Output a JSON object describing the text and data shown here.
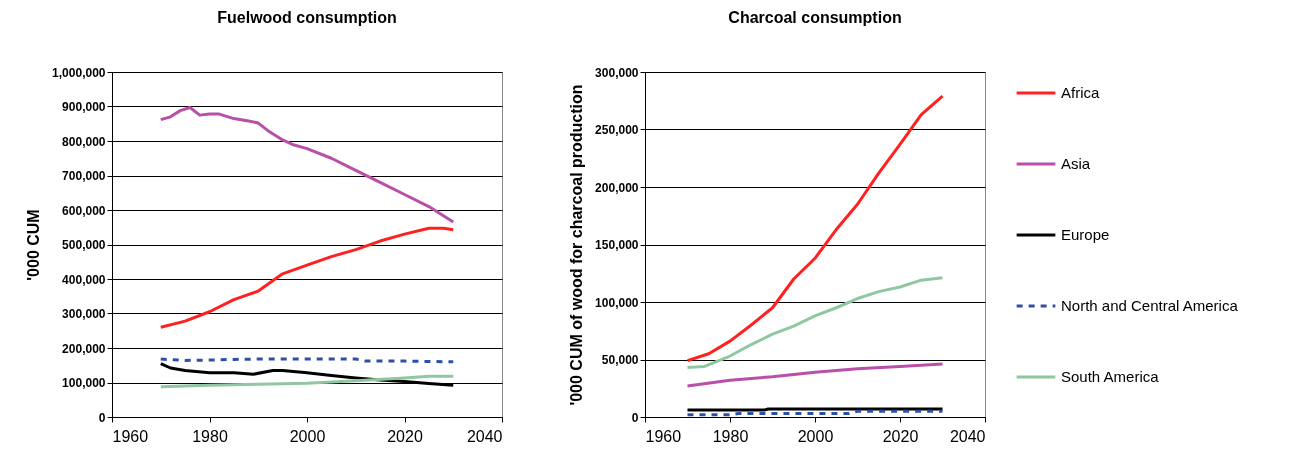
{
  "chart_data": [
    {
      "type": "line",
      "title": "Fuelwood consumption",
      "ylabel": "'000 CUM",
      "xlim": [
        1960,
        2040
      ],
      "xticks": [
        1960,
        1980,
        2000,
        2020,
        2040
      ],
      "ylim": [
        0,
        1000000
      ],
      "yticks": [
        0,
        {
          "value": 100000,
          "label": "100,000"
        },
        {
          "value": 200000,
          "label": "200,000"
        },
        {
          "value": 300000,
          "label": "300,000"
        },
        {
          "value": 400000,
          "label": "400,000"
        },
        {
          "value": 500000,
          "label": "500,000"
        },
        {
          "value": 600000,
          "label": "600,000"
        },
        {
          "value": 700000,
          "label": "700,000"
        },
        {
          "value": 800000,
          "label": "800,000"
        },
        {
          "value": 900000,
          "label": "900,000"
        },
        {
          "value": 1000000,
          "label": "1,000,000"
        }
      ],
      "grid": "y",
      "legend": false,
      "series": [
        {
          "color": "#ff2020",
          "x": [
            1970,
            1975,
            1980,
            1985,
            1990,
            1995,
            2000,
            2005,
            2010,
            2015,
            2020,
            2025,
            2028,
            2030
          ],
          "values": [
            260000,
            278000,
            305000,
            340000,
            365000,
            415000,
            440000,
            465000,
            485000,
            510000,
            530000,
            547000,
            547000,
            543000
          ]
        },
        {
          "color": "#b84fa8",
          "x": [
            1970,
            1972,
            1974,
            1976,
            1978,
            1980,
            1982,
            1985,
            1988,
            1990,
            1992,
            1995,
            1997,
            2000,
            2005,
            2010,
            2015,
            2020,
            2025,
            2030
          ],
          "values": [
            862000,
            870000,
            888000,
            897000,
            875000,
            878000,
            878000,
            865000,
            858000,
            852000,
            830000,
            803000,
            790000,
            778000,
            750000,
            715000,
            680000,
            645000,
            610000,
            565000
          ]
        },
        {
          "color": "#000000",
          "x": [
            1970,
            1972,
            1975,
            1980,
            1985,
            1989,
            1993,
            1995,
            2000,
            2005,
            2010,
            2015,
            2020,
            2025,
            2030
          ],
          "values": [
            155000,
            142000,
            135000,
            128000,
            128000,
            124000,
            135000,
            135000,
            128000,
            120000,
            113000,
            107000,
            103000,
            97000,
            92000
          ]
        },
        {
          "color": "#2e4fa8",
          "line_style": "dashed",
          "x": [
            1970,
            1975,
            1980,
            1985,
            1990,
            2000,
            2010,
            2012,
            2020,
            2030
          ],
          "values": [
            168000,
            164000,
            165000,
            167000,
            168000,
            168000,
            168000,
            162000,
            162000,
            160000
          ]
        },
        {
          "color": "#8fc8a0",
          "x": [
            1970,
            1980,
            1990,
            2000,
            2010,
            2020,
            2025,
            2030
          ],
          "values": [
            88000,
            92000,
            95000,
            98000,
            105000,
            113000,
            118000,
            118000
          ]
        }
      ]
    },
    {
      "type": "line",
      "title": "Charcoal consumption",
      "ylabel": "'000 CUM of wood for charcoal production",
      "xlim": [
        1960,
        2040
      ],
      "xticks": [
        1960,
        1980,
        2000,
        2020,
        2040
      ],
      "ylim": [
        0,
        300000
      ],
      "yticks": [
        0,
        {
          "value": 50000,
          "label": "50,000"
        },
        {
          "value": 100000,
          "label": "100,000"
        },
        {
          "value": 150000,
          "label": "150,000"
        },
        {
          "value": 200000,
          "label": "200,000"
        },
        {
          "value": 250000,
          "label": "250,000"
        },
        {
          "value": 300000,
          "label": "300,000"
        }
      ],
      "grid": "y",
      "legend": "right",
      "series": [
        {
          "name": "Africa",
          "color": "#ff2020",
          "x": [
            1970,
            1975,
            1980,
            1985,
            1990,
            1995,
            2000,
            2005,
            2010,
            2015,
            2020,
            2025,
            2030
          ],
          "values": [
            49000,
            55000,
            66000,
            80000,
            95000,
            120000,
            138000,
            163000,
            185000,
            212000,
            237000,
            263000,
            279000
          ]
        },
        {
          "name": "Asia",
          "color": "#b84fa8",
          "x": [
            1970,
            1980,
            1990,
            2000,
            2010,
            2020,
            2030
          ],
          "values": [
            27000,
            32000,
            35000,
            39000,
            42000,
            44000,
            46000
          ]
        },
        {
          "name": "Europe",
          "color": "#000000",
          "x": [
            1970,
            1988,
            1989,
            2030
          ],
          "values": [
            6000,
            6000,
            7000,
            7000
          ]
        },
        {
          "name": "North and Central America",
          "color": "#2e4fa8",
          "line_style": "dashed",
          "x": [
            1970,
            1980,
            1982,
            2000,
            2008,
            2010,
            2030
          ],
          "values": [
            2000,
            2000,
            3000,
            3000,
            3000,
            5000,
            5000
          ]
        },
        {
          "name": "South America",
          "color": "#8fc8a0",
          "x": [
            1970,
            1974,
            1980,
            1985,
            1990,
            1995,
            2000,
            2005,
            2010,
            2015,
            2020,
            2025,
            2030
          ],
          "values": [
            43000,
            44000,
            53000,
            63000,
            72000,
            79000,
            88000,
            95000,
            103000,
            109000,
            113000,
            119000,
            121000
          ]
        }
      ]
    }
  ]
}
